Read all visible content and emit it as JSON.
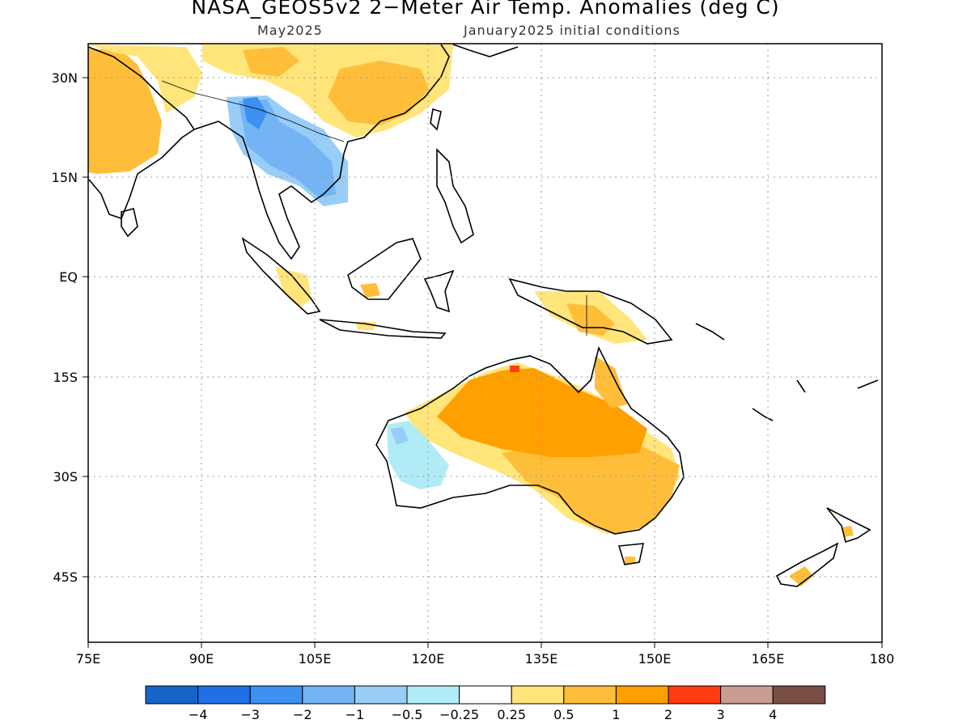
{
  "title": "NASA_GEOS5v2 2−Meter Air Temp. Anomalies (deg C)",
  "subtitle_left": "May2025",
  "subtitle_right": "January2025 initial conditions",
  "map": {
    "lon_range": [
      75,
      180
    ],
    "lat_range": [
      -53,
      35
    ],
    "lon_ticks": [
      "75E",
      "90E",
      "105E",
      "120E",
      "135E",
      "150E",
      "165E",
      "180"
    ],
    "lon_values": [
      75,
      90,
      105,
      120,
      135,
      150,
      165,
      180
    ],
    "lat_ticks": [
      "30N",
      "15N",
      "EQ",
      "15S",
      "30S",
      "45S"
    ],
    "lat_values": [
      30,
      15,
      0,
      -15,
      -30,
      -45
    ],
    "grid": "dotted"
  },
  "colorbar": {
    "colors": [
      "#1565c8",
      "#1f6fe6",
      "#3c91f2",
      "#74b4f5",
      "#98cdf8",
      "#b0ecf6",
      "#ffffff",
      "#ffe57a",
      "#ffbe3a",
      "#ff9f00",
      "#ff3c14",
      "#c99d8f",
      "#7a4f43"
    ],
    "labels": [
      "−4",
      "−3",
      "−2",
      "−1",
      "−0.5",
      "−0.25",
      "0.25",
      "0.5",
      "1",
      "2",
      "3",
      "4"
    ]
  }
}
